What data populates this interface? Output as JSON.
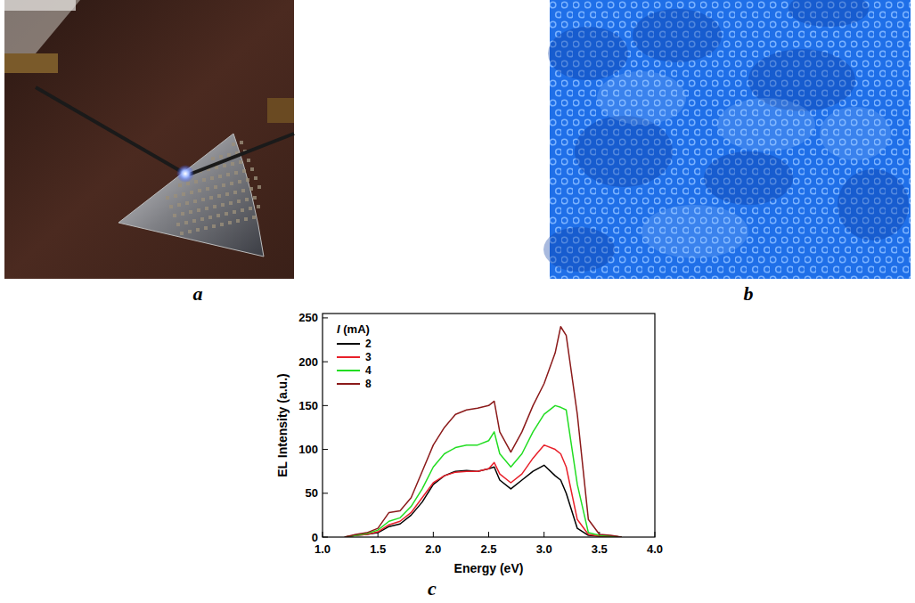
{
  "panel_labels": [
    "a",
    "b",
    "c"
  ],
  "chart_data": {
    "type": "line",
    "x_label": "Energy (eV)",
    "y_label": "EL Intensity (a.u.)",
    "legend_title": "I (mA)",
    "legend": "upper left",
    "x": [
      1.2,
      1.3,
      1.4,
      1.5,
      1.6,
      1.7,
      1.8,
      1.9,
      2.0,
      2.1,
      2.2,
      2.3,
      2.4,
      2.5,
      2.55,
      2.6,
      2.7,
      2.8,
      2.9,
      3.0,
      3.1,
      3.15,
      3.2,
      3.3,
      3.4,
      3.5,
      3.6,
      3.7
    ],
    "series": [
      {
        "name": "2",
        "color": "#000000",
        "values": [
          0,
          2,
          3,
          5,
          12,
          15,
          25,
          40,
          60,
          70,
          75,
          76,
          75,
          78,
          80,
          65,
          55,
          65,
          75,
          82,
          70,
          65,
          50,
          10,
          2,
          1,
          1,
          0
        ]
      },
      {
        "name": "3",
        "color": "#e8202a",
        "values": [
          0,
          2,
          3,
          6,
          14,
          18,
          28,
          45,
          62,
          70,
          74,
          75,
          75,
          78,
          85,
          72,
          62,
          72,
          90,
          105,
          100,
          95,
          80,
          20,
          3,
          1,
          1,
          0
        ]
      },
      {
        "name": "4",
        "color": "#22dd22",
        "values": [
          0,
          2,
          4,
          8,
          18,
          22,
          35,
          55,
          80,
          95,
          102,
          105,
          105,
          110,
          120,
          95,
          80,
          95,
          120,
          140,
          150,
          148,
          145,
          60,
          5,
          2,
          1,
          0
        ]
      },
      {
        "name": "8",
        "color": "#8b1a1a",
        "values": [
          0,
          3,
          5,
          10,
          28,
          30,
          45,
          75,
          105,
          125,
          140,
          145,
          147,
          150,
          155,
          120,
          97,
          120,
          150,
          175,
          210,
          240,
          230,
          140,
          20,
          3,
          2,
          0
        ]
      }
    ],
    "xlim": [
      1.0,
      4.0
    ],
    "ylim": [
      0,
      255
    ],
    "xticks": [
      {
        "value": 1.0,
        "label": "1.0"
      },
      1.5,
      {
        "value": 2.0,
        "label": "2.0"
      },
      2.5,
      {
        "value": 3.0,
        "label": "3.0"
      },
      3.5,
      {
        "value": 4.0,
        "label": "4.0"
      }
    ],
    "yticks": [
      0,
      50,
      100,
      150,
      200,
      250
    ]
  }
}
